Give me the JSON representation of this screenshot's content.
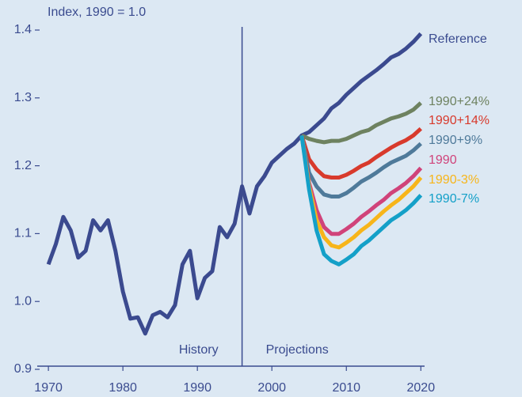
{
  "chart_data": {
    "type": "line",
    "y_axis_label": "Index, 1990 = 1.0",
    "annotations": [
      "History",
      "Projections"
    ],
    "divider_x": 1996,
    "x": [
      1970,
      1971,
      1972,
      1973,
      1974,
      1975,
      1976,
      1977,
      1978,
      1979,
      1980,
      1981,
      1982,
      1983,
      1984,
      1985,
      1986,
      1987,
      1988,
      1989,
      1990,
      1991,
      1992,
      1993,
      1994,
      1995,
      1996,
      1997,
      1998,
      1999,
      2000,
      2001,
      2002,
      2003,
      2004,
      2005,
      2006,
      2007,
      2008,
      2009,
      2010,
      2011,
      2012,
      2013,
      2014,
      2015,
      2016,
      2017,
      2018,
      2019,
      2020
    ],
    "series": [
      {
        "name": "Reference",
        "color": "#3b4a8f",
        "values": [
          1.05,
          1.08,
          1.12,
          1.1,
          1.06,
          1.07,
          1.115,
          1.1,
          1.115,
          1.07,
          1.01,
          0.97,
          0.972,
          0.948,
          0.975,
          0.98,
          0.972,
          0.99,
          1.05,
          1.07,
          1.0,
          1.03,
          1.04,
          1.105,
          1.09,
          1.11,
          1.165,
          1.125,
          1.165,
          1.18,
          1.2,
          1.21,
          1.22,
          1.228,
          1.24,
          1.245,
          1.255,
          1.265,
          1.28,
          1.288,
          1.3,
          1.31,
          1.32,
          1.328,
          1.336,
          1.345,
          1.355,
          1.36,
          1.368,
          1.378,
          1.39
        ]
      },
      {
        "name": "1990+24%",
        "color": "#6e8260",
        "values": [
          null,
          null,
          null,
          null,
          null,
          null,
          null,
          null,
          null,
          null,
          null,
          null,
          null,
          null,
          null,
          null,
          null,
          null,
          null,
          null,
          null,
          null,
          null,
          null,
          null,
          null,
          null,
          null,
          null,
          null,
          null,
          null,
          null,
          null,
          1.24,
          1.235,
          1.232,
          1.23,
          1.232,
          1.232,
          1.235,
          1.24,
          1.245,
          1.248,
          1.255,
          1.26,
          1.265,
          1.268,
          1.272,
          1.278,
          1.288
        ]
      },
      {
        "name": "1990+14%",
        "color": "#d83a2c",
        "values": [
          null,
          null,
          null,
          null,
          null,
          null,
          null,
          null,
          null,
          null,
          null,
          null,
          null,
          null,
          null,
          null,
          null,
          null,
          null,
          null,
          null,
          null,
          null,
          null,
          null,
          null,
          null,
          null,
          null,
          null,
          null,
          null,
          null,
          null,
          1.24,
          1.205,
          1.19,
          1.18,
          1.178,
          1.178,
          1.182,
          1.188,
          1.195,
          1.2,
          1.208,
          1.215,
          1.222,
          1.228,
          1.233,
          1.24,
          1.25
        ]
      },
      {
        "name": "1990+9%",
        "color": "#4f7a9a",
        "values": [
          null,
          null,
          null,
          null,
          null,
          null,
          null,
          null,
          null,
          null,
          null,
          null,
          null,
          null,
          null,
          null,
          null,
          null,
          null,
          null,
          null,
          null,
          null,
          null,
          null,
          null,
          null,
          null,
          null,
          null,
          null,
          null,
          null,
          null,
          1.24,
          1.185,
          1.165,
          1.153,
          1.15,
          1.15,
          1.155,
          1.163,
          1.172,
          1.178,
          1.185,
          1.193,
          1.2,
          1.205,
          1.21,
          1.218,
          1.228
        ]
      },
      {
        "name": "1990",
        "color": "#d0437a",
        "values": [
          null,
          null,
          null,
          null,
          null,
          null,
          null,
          null,
          null,
          null,
          null,
          null,
          null,
          null,
          null,
          null,
          null,
          null,
          null,
          null,
          null,
          null,
          null,
          null,
          null,
          null,
          null,
          null,
          null,
          null,
          null,
          null,
          null,
          null,
          1.24,
          1.17,
          1.13,
          1.105,
          1.095,
          1.095,
          1.102,
          1.11,
          1.12,
          1.128,
          1.137,
          1.145,
          1.155,
          1.162,
          1.17,
          1.18,
          1.192
        ]
      },
      {
        "name": "1990-3%",
        "color": "#f7b51a",
        "values": [
          null,
          null,
          null,
          null,
          null,
          null,
          null,
          null,
          null,
          null,
          null,
          null,
          null,
          null,
          null,
          null,
          null,
          null,
          null,
          null,
          null,
          null,
          null,
          null,
          null,
          null,
          null,
          null,
          null,
          null,
          null,
          null,
          null,
          null,
          1.24,
          1.165,
          1.115,
          1.09,
          1.078,
          1.075,
          1.082,
          1.09,
          1.1,
          1.108,
          1.118,
          1.128,
          1.137,
          1.145,
          1.155,
          1.165,
          1.178
        ]
      },
      {
        "name": "1990-7%",
        "color": "#14a0c8",
        "values": [
          null,
          null,
          null,
          null,
          null,
          null,
          null,
          null,
          null,
          null,
          null,
          null,
          null,
          null,
          null,
          null,
          null,
          null,
          null,
          null,
          null,
          null,
          null,
          null,
          null,
          null,
          null,
          null,
          null,
          null,
          null,
          null,
          null,
          null,
          1.24,
          1.16,
          1.1,
          1.065,
          1.055,
          1.05,
          1.057,
          1.065,
          1.077,
          1.085,
          1.095,
          1.105,
          1.115,
          1.122,
          1.13,
          1.14,
          1.152
        ]
      }
    ],
    "xlim": [
      1968.5,
      2020.5
    ],
    "ylim": [
      0.9,
      1.4
    ],
    "xticks": [
      1970,
      1980,
      1990,
      2000,
      2010,
      2020
    ],
    "yticks": [
      0.9,
      {
        "value": 1,
        "label": "1.0"
      },
      1.1,
      1.2,
      1.3,
      1.4
    ]
  }
}
